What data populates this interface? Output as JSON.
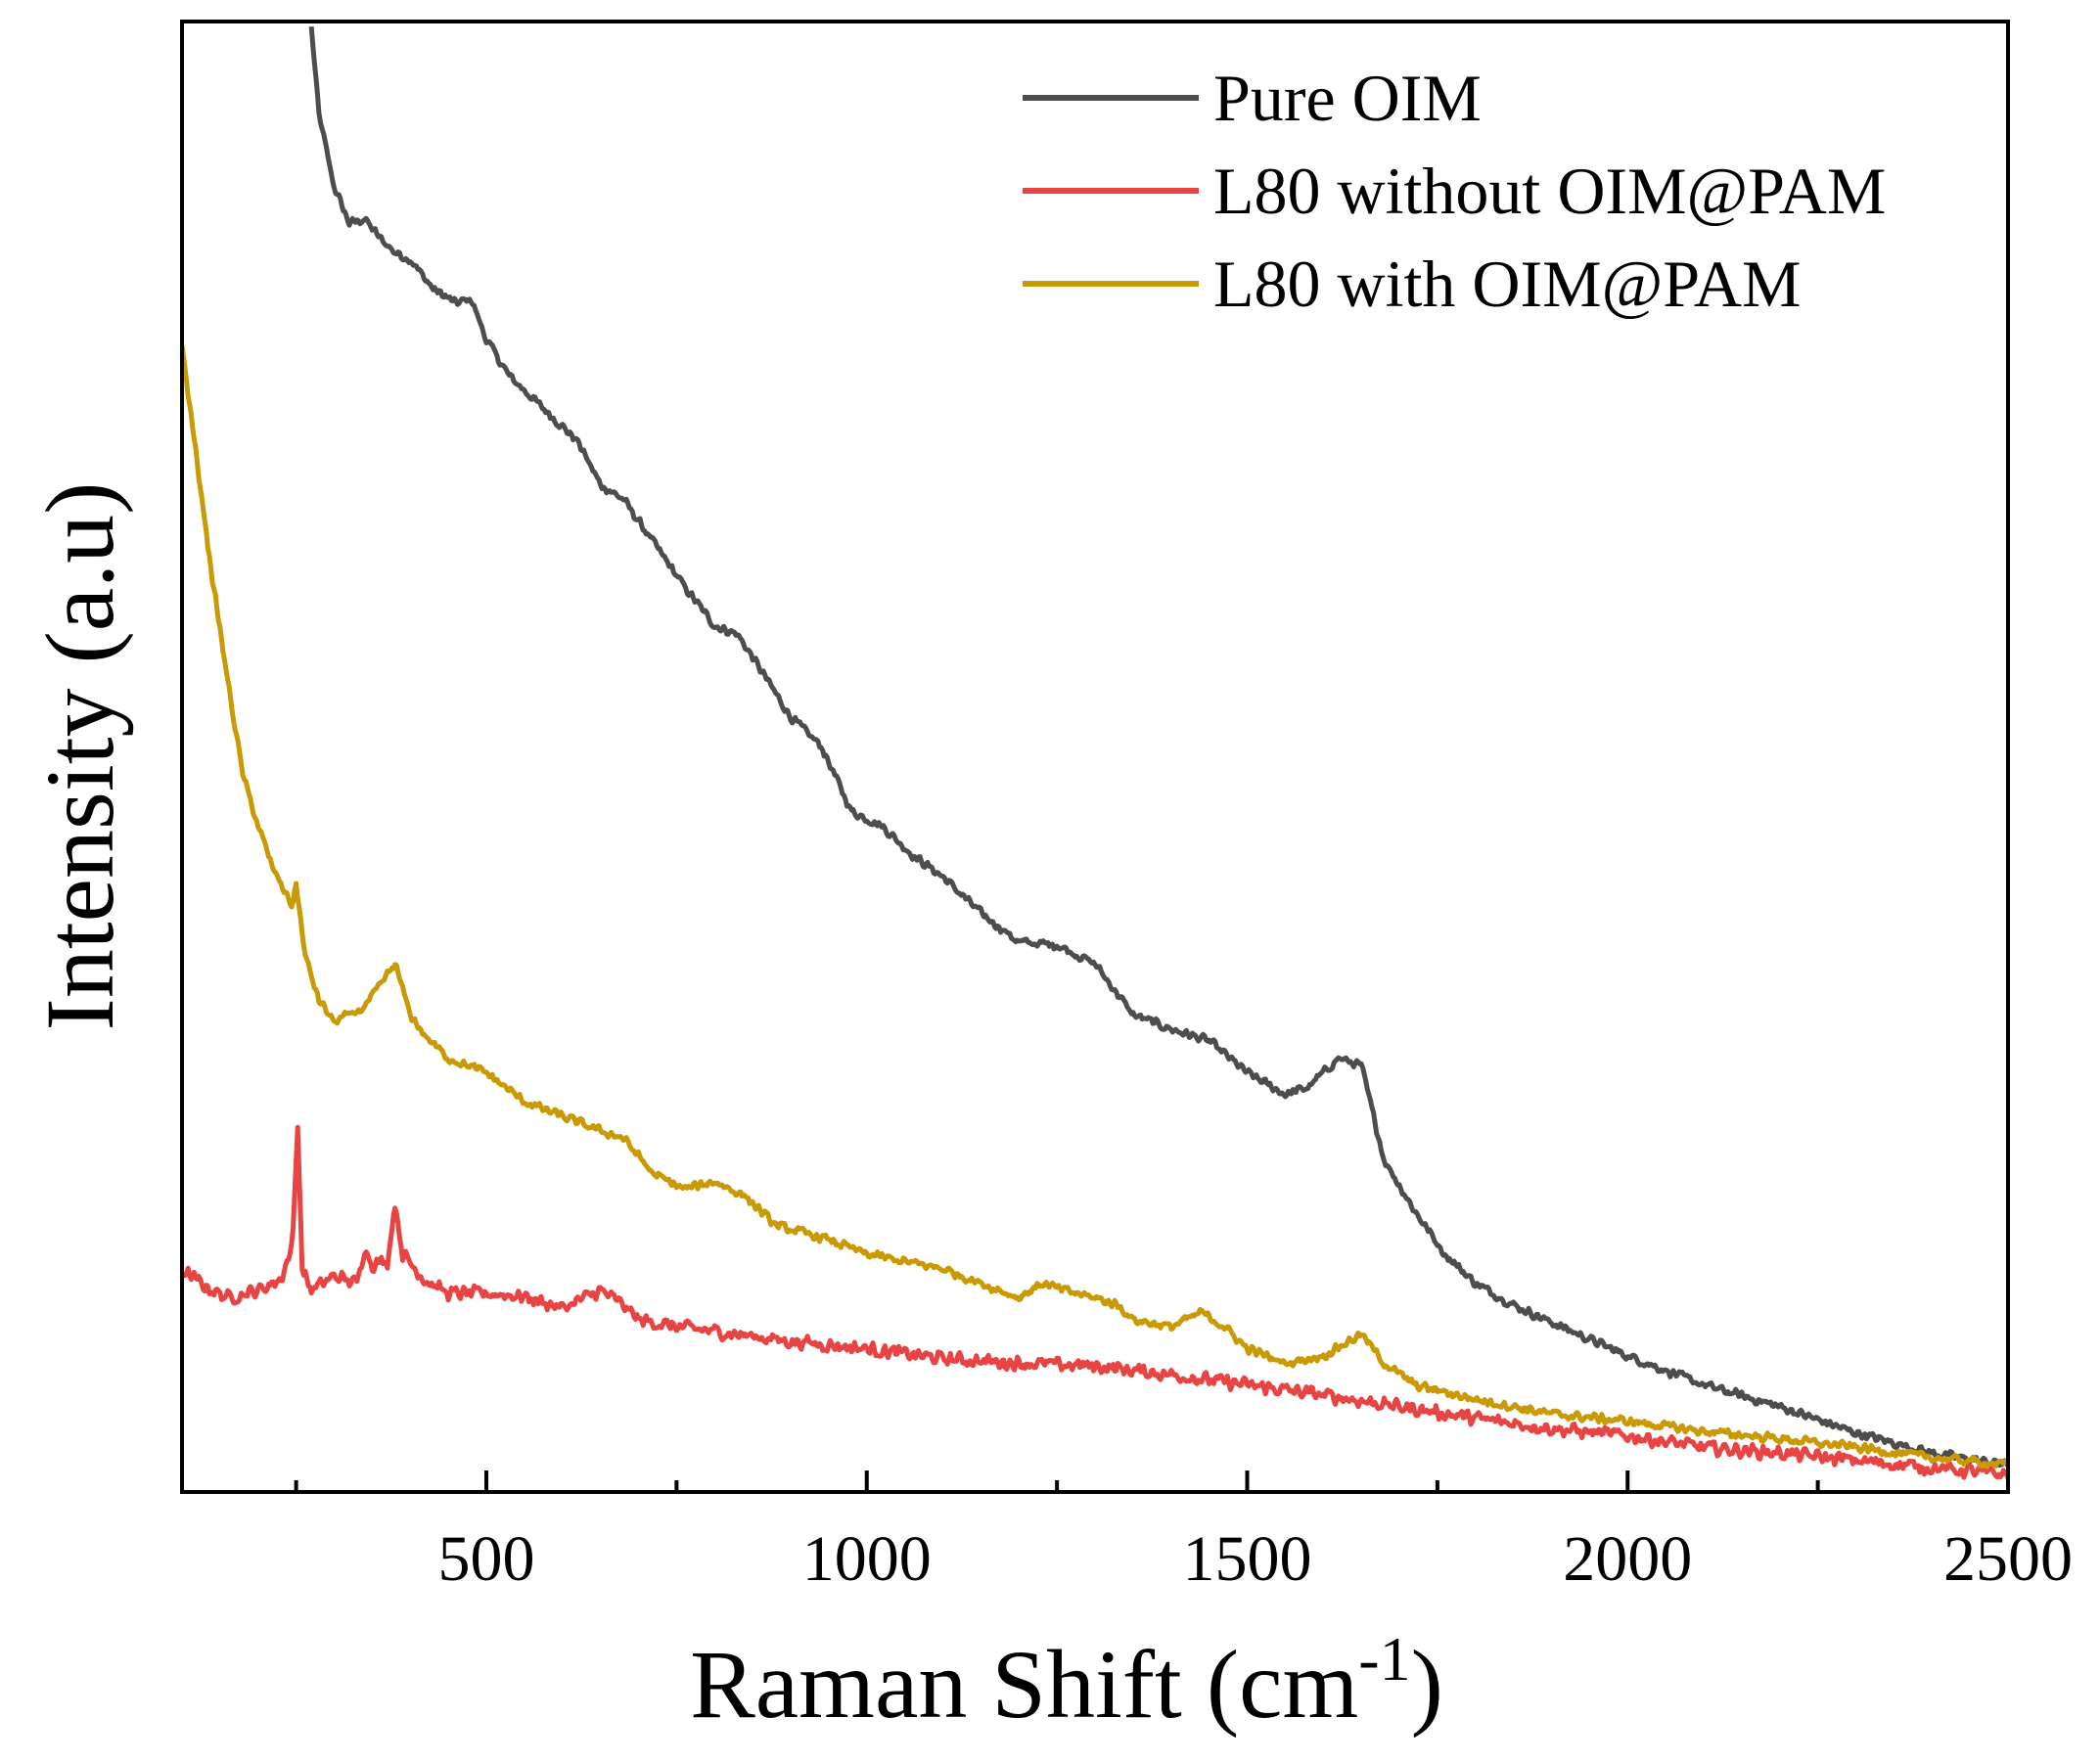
{
  "chart_data": {
    "type": "line",
    "xlabel": "Raman Shift (cm",
    "xlabel_sup": "-1",
    "xlabel_suffix": ")",
    "ylabel": "Intensity (a.u)",
    "xlim": [
      100,
      2500
    ],
    "ylim": [
      0,
      100
    ],
    "y_ticks_shown": false,
    "x_ticks": [
      500,
      1000,
      1500,
      2000,
      2500
    ],
    "x_tick_labels": [
      "500",
      "1000",
      "1500",
      "2000",
      "2500"
    ],
    "x_minor_ticks": [
      250,
      750,
      1250,
      1750,
      2250
    ],
    "grid": false,
    "legend_position": "top-right",
    "series": [
      {
        "name": "Pure OIM",
        "color": "#4d4d4d",
        "points": [
          [
            270,
            100
          ],
          [
            280,
            94
          ],
          [
            300,
            89
          ],
          [
            320,
            86.5
          ],
          [
            340,
            86.8
          ],
          [
            360,
            85.5
          ],
          [
            380,
            84.5
          ],
          [
            400,
            84
          ],
          [
            430,
            82
          ],
          [
            460,
            81
          ],
          [
            480,
            81.3
          ],
          [
            500,
            78.5
          ],
          [
            530,
            76
          ],
          [
            560,
            74.5
          ],
          [
            590,
            73
          ],
          [
            620,
            71.5
          ],
          [
            650,
            68.5
          ],
          [
            680,
            67.5
          ],
          [
            720,
            64.5
          ],
          [
            760,
            61.5
          ],
          [
            800,
            58.8
          ],
          [
            830,
            58.2
          ],
          [
            860,
            55.8
          ],
          [
            900,
            52.5
          ],
          [
            940,
            50.5
          ],
          [
            980,
            46
          ],
          [
            1020,
            45
          ],
          [
            1060,
            43
          ],
          [
            1100,
            41.5
          ],
          [
            1150,
            39
          ],
          [
            1200,
            37
          ],
          [
            1250,
            36.8
          ],
          [
            1300,
            35.5
          ],
          [
            1350,
            32
          ],
          [
            1400,
            31
          ],
          [
            1450,
            30.2
          ],
          [
            1500,
            28
          ],
          [
            1550,
            26.5
          ],
          [
            1580,
            27
          ],
          [
            1620,
            29
          ],
          [
            1650,
            28.5
          ],
          [
            1680,
            22
          ],
          [
            1720,
            18.5
          ],
          [
            1760,
            15.5
          ],
          [
            1800,
            13.5
          ],
          [
            1850,
            12
          ],
          [
            1900,
            10.8
          ],
          [
            2000,
            8.5
          ],
          [
            2100,
            6.5
          ],
          [
            2200,
            5
          ],
          [
            2300,
            3.2
          ],
          [
            2400,
            1.8
          ],
          [
            2470,
            1.2
          ],
          [
            2500,
            1
          ]
        ]
      },
      {
        "name": "L80 without OIM@PAM",
        "color": "#e84444",
        "points": [
          [
            100,
            14.4
          ],
          [
            130,
            13.3
          ],
          [
            160,
            12.5
          ],
          [
            200,
            13
          ],
          [
            230,
            13.8
          ],
          [
            245,
            16
          ],
          [
            252,
            24.5
          ],
          [
            258,
            14.5
          ],
          [
            270,
            13
          ],
          [
            300,
            14
          ],
          [
            330,
            13.5
          ],
          [
            340,
            16
          ],
          [
            350,
            14.8
          ],
          [
            370,
            15
          ],
          [
            380,
            19
          ],
          [
            390,
            15.5
          ],
          [
            420,
            13.7
          ],
          [
            450,
            12.8
          ],
          [
            500,
            12.8
          ],
          [
            550,
            12.6
          ],
          [
            600,
            11.8
          ],
          [
            650,
            13
          ],
          [
            680,
            12
          ],
          [
            700,
            11
          ],
          [
            750,
            10.5
          ],
          [
            800,
            10.2
          ],
          [
            900,
            9.5
          ],
          [
            1000,
            9
          ],
          [
            1100,
            8.3
          ],
          [
            1200,
            8
          ],
          [
            1300,
            7.8
          ],
          [
            1400,
            7.2
          ],
          [
            1500,
            6.5
          ],
          [
            1600,
            5.8
          ],
          [
            1700,
            5
          ],
          [
            1800,
            4.2
          ],
          [
            1900,
            3.5
          ],
          [
            2000,
            3
          ],
          [
            2100,
            2.2
          ],
          [
            2200,
            1.8
          ],
          [
            2300,
            1.3
          ],
          [
            2400,
            0.8
          ],
          [
            2500,
            0.3
          ]
        ]
      },
      {
        "name": "L80 with OIM@PAM",
        "color": "#c99a06",
        "points": [
          [
            100,
            78
          ],
          [
            120,
            70
          ],
          [
            140,
            62
          ],
          [
            160,
            55
          ],
          [
            180,
            48.5
          ],
          [
            200,
            45
          ],
          [
            220,
            42
          ],
          [
            245,
            39.5
          ],
          [
            250,
            41
          ],
          [
            262,
            36
          ],
          [
            280,
            33
          ],
          [
            300,
            31.5
          ],
          [
            320,
            32
          ],
          [
            340,
            32.5
          ],
          [
            360,
            34
          ],
          [
            380,
            35.5
          ],
          [
            400,
            32
          ],
          [
            420,
            30.5
          ],
          [
            450,
            29
          ],
          [
            500,
            28
          ],
          [
            550,
            26
          ],
          [
            600,
            25
          ],
          [
            650,
            24
          ],
          [
            680,
            23.5
          ],
          [
            720,
            21
          ],
          [
            760,
            20
          ],
          [
            800,
            20.5
          ],
          [
            840,
            19.5
          ],
          [
            880,
            17.5
          ],
          [
            950,
            16.5
          ],
          [
            1000,
            15.5
          ],
          [
            1050,
            15
          ],
          [
            1100,
            14.5
          ],
          [
            1150,
            13.5
          ],
          [
            1200,
            12.5
          ],
          [
            1230,
            13.5
          ],
          [
            1260,
            13
          ],
          [
            1300,
            12.5
          ],
          [
            1330,
            12
          ],
          [
            1350,
            11
          ],
          [
            1400,
            10.5
          ],
          [
            1440,
            11.5
          ],
          [
            1470,
            10.5
          ],
          [
            1500,
            9
          ],
          [
            1550,
            8
          ],
          [
            1600,
            8.5
          ],
          [
            1650,
            10
          ],
          [
            1680,
            8
          ],
          [
            1720,
            6.5
          ],
          [
            1800,
            5.5
          ],
          [
            1900,
            4.5
          ],
          [
            2000,
            4
          ],
          [
            2100,
            3.3
          ],
          [
            2200,
            2.8
          ],
          [
            2300,
            2.2
          ],
          [
            2400,
            1.5
          ],
          [
            2500,
            1
          ]
        ]
      }
    ]
  }
}
